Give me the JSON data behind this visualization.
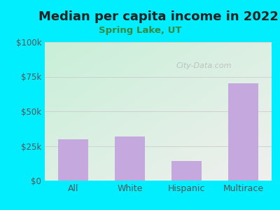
{
  "title": "Median per capita income in 2022",
  "subtitle": "Spring Lake, UT",
  "categories": [
    "All",
    "White",
    "Hispanic",
    "Multirace"
  ],
  "values": [
    30000,
    32000,
    14000,
    70000
  ],
  "bar_color": "#c4a8de",
  "title_color": "#222222",
  "subtitle_color": "#3a8a3a",
  "background_outer": "#00eeff",
  "background_inner_topleft": "#c8efd8",
  "background_inner_right": "#f0f0ee",
  "tick_color": "#555555",
  "grid_color": "#cccccc",
  "ylim": [
    0,
    100000
  ],
  "yticks": [
    0,
    25000,
    50000,
    75000,
    100000
  ],
  "ytick_labels": [
    "$0",
    "$25k",
    "$50k",
    "$75k",
    "$100k"
  ],
  "watermark": "City-Data.com",
  "watermark_color": "#aaaaaa",
  "title_fontsize": 13,
  "subtitle_fontsize": 9.5,
  "tick_fontsize": 8.5,
  "xtick_fontsize": 9
}
